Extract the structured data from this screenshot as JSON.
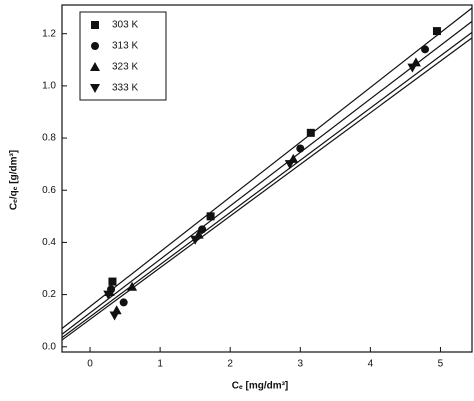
{
  "chart_data": {
    "type": "scatter",
    "x_label": "Cₑ [mg/dm³]",
    "y_label": "Cₑ/qₑ [g/dm³]",
    "xlim": [
      -0.4,
      5.45
    ],
    "ylim": [
      -0.02,
      1.31
    ],
    "xticks": [
      0,
      1,
      2,
      3,
      4,
      5
    ],
    "yticks": [
      {
        "value": 0,
        "label": "0.0"
      },
      0.2,
      0.4,
      0.6,
      0.8,
      {
        "value": 1,
        "label": "1.0"
      },
      1.2
    ],
    "legend": "upper left",
    "series": [
      {
        "name": "303 K",
        "color": "#111111",
        "marker": "square",
        "x": [
          0.32,
          1.72,
          3.15,
          4.95
        ],
        "values": [
          0.25,
          0.5,
          0.82,
          1.21
        ],
        "fit": {
          "slope": 0.21,
          "intercept": 0.154
        }
      },
      {
        "name": "313 K",
        "color": "#111111",
        "marker": "circle",
        "x": [
          0.3,
          0.48,
          1.6,
          3.0,
          4.78
        ],
        "values": [
          0.22,
          0.17,
          0.45,
          0.76,
          1.14
        ],
        "fit": {
          "slope": 0.205,
          "intercept": 0.13
        }
      },
      {
        "name": "323 K",
        "color": "#111111",
        "marker": "triangle-up",
        "x": [
          0.28,
          0.38,
          0.6,
          1.55,
          2.9,
          4.65
        ],
        "values": [
          0.21,
          0.14,
          0.23,
          0.43,
          0.72,
          1.09
        ],
        "fit": {
          "slope": 0.2,
          "intercept": 0.115
        }
      },
      {
        "name": "333 K",
        "color": "#111111",
        "marker": "triangle-down",
        "x": [
          0.26,
          0.35,
          1.5,
          2.85,
          4.6
        ],
        "values": [
          0.2,
          0.12,
          0.41,
          0.7,
          1.07
        ],
        "fit": {
          "slope": 0.198,
          "intercept": 0.105
        }
      }
    ]
  }
}
